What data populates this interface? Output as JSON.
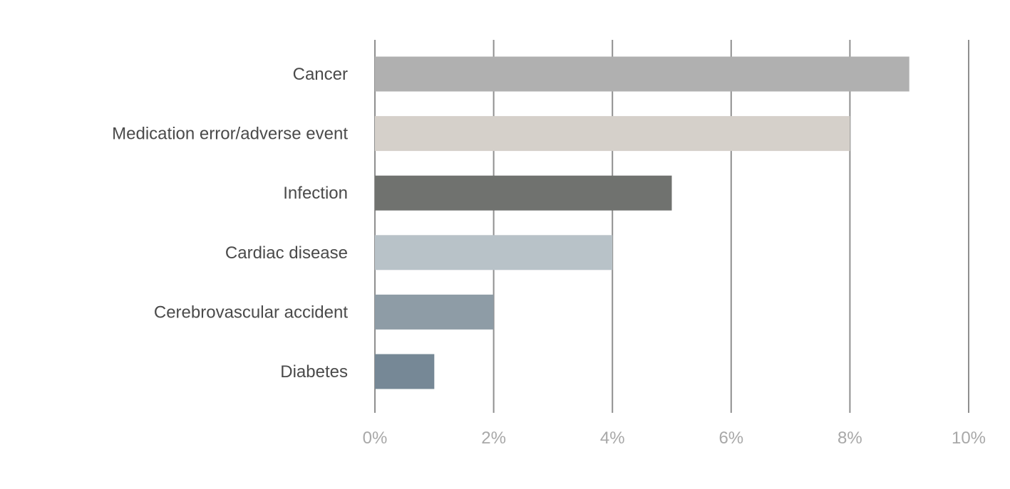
{
  "chart_data": {
    "type": "bar",
    "orientation": "horizontal",
    "title": "",
    "xlabel": "",
    "ylabel": "",
    "categories": [
      "Cancer",
      "Medication error/adverse event",
      "Infection",
      "Cardiac disease",
      "Cerebrovascular accident",
      "Diabetes"
    ],
    "values": [
      9,
      8,
      5,
      4,
      2,
      1
    ],
    "unit": "%",
    "colors": [
      "#b0b0b0",
      "#d5d0ca",
      "#70726f",
      "#b8c2c8",
      "#8e9ca6",
      "#768896"
    ],
    "xlim": [
      0,
      10
    ],
    "xticks": [
      0,
      2,
      4,
      6,
      8,
      10
    ],
    "xtick_labels": [
      "0%",
      "2%",
      "4%",
      "6%",
      "8%",
      "10%"
    ],
    "grid": "vertical",
    "legend": "none"
  }
}
